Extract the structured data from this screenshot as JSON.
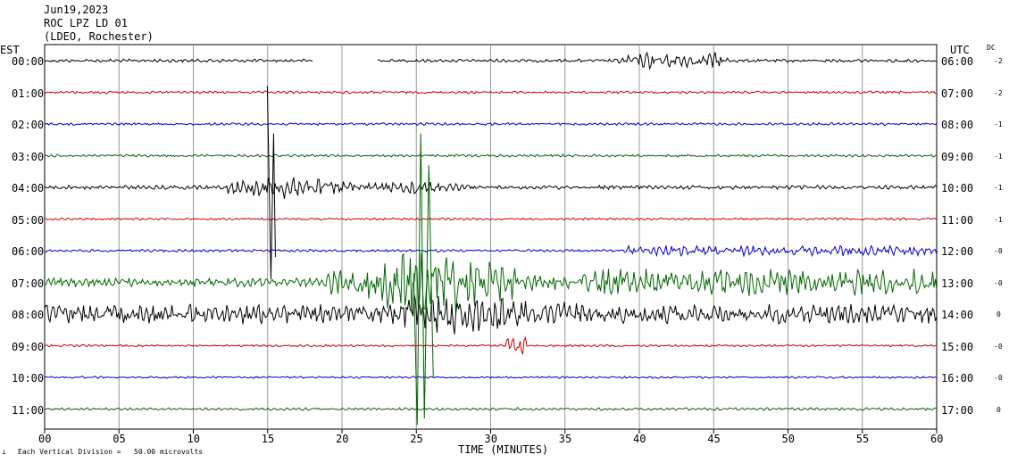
{
  "header": {
    "date": "Jun19,2023",
    "station": "ROC LPZ LD 01",
    "network": "(LDEO, Rochester)"
  },
  "labels": {
    "left_zone": "EST",
    "right_zone": "UTC",
    "dc": "DC",
    "x_axis_title": "TIME (MINUTES)",
    "scale_note": "Each Vertical Division =   50.00 microvolts"
  },
  "chart_data": {
    "type": "line",
    "title": "ROC LPZ LD 01",
    "xlabel": "TIME (MINUTES)",
    "xlim": [
      0,
      60
    ],
    "x_ticks": [
      "00",
      "05",
      "10",
      "15",
      "20",
      "25",
      "30",
      "35",
      "40",
      "45",
      "50",
      "55",
      "60"
    ],
    "grid": true,
    "trace_colors": [
      "#000000",
      "#cc0000",
      "#0000cc",
      "#006600"
    ],
    "rows": [
      {
        "est": "00:00",
        "utc": "06:00",
        "dc": "-2"
      },
      {
        "est": "01:00",
        "utc": "07:00",
        "dc": "-2"
      },
      {
        "est": "02:00",
        "utc": "08:00",
        "dc": "-1"
      },
      {
        "est": "03:00",
        "utc": "09:00",
        "dc": "-1"
      },
      {
        "est": "04:00",
        "utc": "10:00",
        "dc": "-1"
      },
      {
        "est": "05:00",
        "utc": "11:00",
        "dc": "-1"
      },
      {
        "est": "06:00",
        "utc": "12:00",
        "dc": "-0"
      },
      {
        "est": "07:00",
        "utc": "13:00",
        "dc": "-0"
      },
      {
        "est": "08:00",
        "utc": "14:00",
        "dc": "0"
      },
      {
        "est": "09:00",
        "utc": "15:00",
        "dc": "-0"
      },
      {
        "est": "10:00",
        "utc": "16:00",
        "dc": "-0"
      },
      {
        "est": "11:00",
        "utc": "17:00",
        "dc": "0"
      }
    ]
  }
}
